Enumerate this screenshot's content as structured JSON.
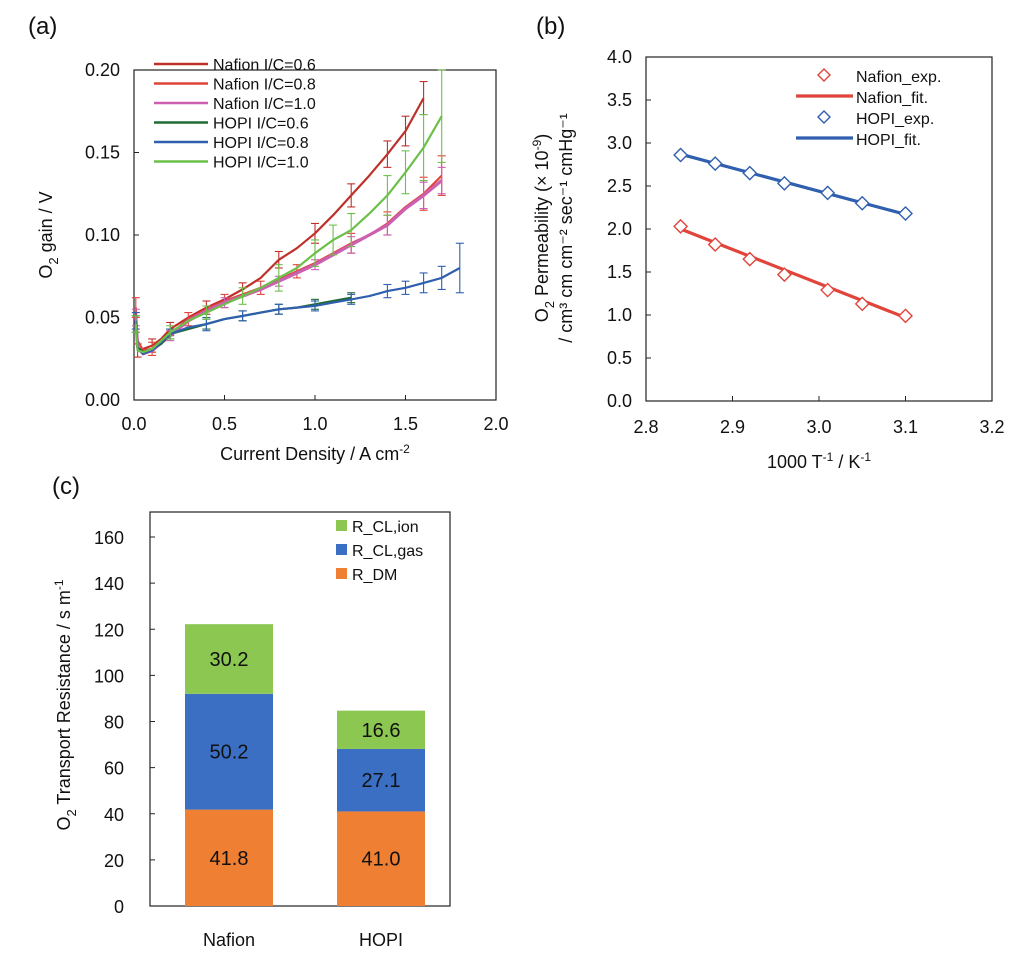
{
  "chart_data": [
    {
      "panel": "(a)",
      "type": "line",
      "xlabel": "Current Density / A cm",
      "xlabel_sup": "-2",
      "ylabel_pre": "O",
      "ylabel_sub": "2",
      "ylabel_post": " gain / V",
      "xlim": [
        0.0,
        2.0
      ],
      "ylim": [
        0.0,
        0.2
      ],
      "xticks": [
        "0.0",
        "0.5",
        "1.0",
        "1.5",
        "2.0"
      ],
      "yticks": [
        "0.00",
        "0.05",
        "0.10",
        "0.15",
        "0.20"
      ],
      "legend_position": "top-left",
      "series": [
        {
          "name": "Nafion I/C=0.6",
          "color": "#c0302a",
          "lw": 2.2,
          "points": [
            [
              0.02,
              0.03
            ],
            [
              0.05,
              0.031
            ],
            [
              0.1,
              0.033
            ],
            [
              0.15,
              0.037
            ],
            [
              0.2,
              0.043
            ],
            [
              0.3,
              0.05
            ],
            [
              0.4,
              0.056
            ],
            [
              0.5,
              0.061
            ],
            [
              0.6,
              0.067
            ],
            [
              0.7,
              0.074
            ],
            [
              0.8,
              0.085
            ],
            [
              0.9,
              0.092
            ],
            [
              1.0,
              0.101
            ],
            [
              1.1,
              0.112
            ],
            [
              1.2,
              0.124
            ],
            [
              1.3,
              0.136
            ],
            [
              1.4,
              0.149
            ],
            [
              1.5,
              0.163
            ],
            [
              1.6,
              0.183
            ]
          ],
          "errors": [
            [
              0.02,
              0.004
            ],
            [
              0.1,
              0.004
            ],
            [
              0.2,
              0.004
            ],
            [
              0.4,
              0.004
            ],
            [
              0.6,
              0.004
            ],
            [
              0.8,
              0.005
            ],
            [
              1.0,
              0.006
            ],
            [
              1.2,
              0.007
            ],
            [
              1.4,
              0.008
            ],
            [
              1.5,
              0.009
            ],
            [
              1.6,
              0.01
            ]
          ]
        },
        {
          "name": "Nafion I/C=0.8",
          "color": "#e0443a",
          "lw": 2.2,
          "points": [
            [
              0.01,
              0.056
            ],
            [
              0.02,
              0.036
            ],
            [
              0.05,
              0.03
            ],
            [
              0.1,
              0.031
            ],
            [
              0.2,
              0.04
            ],
            [
              0.3,
              0.049
            ],
            [
              0.4,
              0.055
            ],
            [
              0.5,
              0.06
            ],
            [
              0.6,
              0.064
            ],
            [
              0.7,
              0.068
            ],
            [
              0.8,
              0.073
            ],
            [
              0.9,
              0.078
            ],
            [
              1.0,
              0.083
            ],
            [
              1.1,
              0.089
            ],
            [
              1.2,
              0.095
            ],
            [
              1.3,
              0.1
            ],
            [
              1.4,
              0.107
            ],
            [
              1.5,
              0.117
            ],
            [
              1.6,
              0.125
            ],
            [
              1.7,
              0.136
            ]
          ],
          "errors": [
            [
              0.01,
              0.006
            ],
            [
              0.1,
              0.004
            ],
            [
              0.3,
              0.004
            ],
            [
              0.5,
              0.004
            ],
            [
              0.7,
              0.004
            ],
            [
              0.9,
              0.004
            ],
            [
              1.2,
              0.006
            ],
            [
              1.4,
              0.007
            ],
            [
              1.6,
              0.01
            ],
            [
              1.7,
              0.012
            ]
          ]
        },
        {
          "name": "Nafion I/C=1.0",
          "color": "#cc5fb0",
          "lw": 3.2,
          "points": [
            [
              0.01,
              0.05
            ],
            [
              0.02,
              0.032
            ],
            [
              0.05,
              0.028
            ],
            [
              0.1,
              0.03
            ],
            [
              0.2,
              0.039
            ],
            [
              0.3,
              0.048
            ],
            [
              0.4,
              0.054
            ],
            [
              0.5,
              0.059
            ],
            [
              0.6,
              0.063
            ],
            [
              0.7,
              0.067
            ],
            [
              0.8,
              0.072
            ],
            [
              0.9,
              0.077
            ],
            [
              1.0,
              0.082
            ],
            [
              1.1,
              0.088
            ],
            [
              1.2,
              0.094
            ],
            [
              1.3,
              0.1
            ],
            [
              1.4,
              0.106
            ],
            [
              1.5,
              0.116
            ],
            [
              1.6,
              0.124
            ],
            [
              1.7,
              0.133
            ]
          ],
          "errors": [
            [
              0.01,
              0.005
            ],
            [
              0.2,
              0.003
            ],
            [
              0.5,
              0.003
            ],
            [
              0.8,
              0.003
            ],
            [
              1.0,
              0.003
            ],
            [
              1.2,
              0.005
            ],
            [
              1.4,
              0.006
            ],
            [
              1.6,
              0.008
            ],
            [
              1.7,
              0.008
            ]
          ]
        },
        {
          "name": "HOPI I/C=0.6",
          "color": "#1f6b34",
          "lw": 2.2,
          "points": [
            [
              0.01,
              0.046
            ],
            [
              0.02,
              0.032
            ],
            [
              0.05,
              0.029
            ],
            [
              0.1,
              0.031
            ],
            [
              0.15,
              0.034
            ],
            [
              0.2,
              0.04
            ],
            [
              0.3,
              0.043
            ],
            [
              0.4,
              0.046
            ],
            [
              0.5,
              0.049
            ],
            [
              0.6,
              0.051
            ],
            [
              0.7,
              0.053
            ],
            [
              0.8,
              0.055
            ],
            [
              0.9,
              0.056
            ],
            [
              1.0,
              0.058
            ],
            [
              1.1,
              0.06
            ],
            [
              1.2,
              0.062
            ]
          ],
          "errors": [
            [
              0.01,
              0.005
            ],
            [
              0.2,
              0.003
            ],
            [
              0.4,
              0.003
            ],
            [
              0.6,
              0.003
            ],
            [
              0.8,
              0.003
            ],
            [
              1.0,
              0.003
            ],
            [
              1.2,
              0.003
            ]
          ]
        },
        {
          "name": "HOPI I/C=0.8",
          "color": "#2f5fae",
          "lw": 2.2,
          "points": [
            [
              0.01,
              0.048
            ],
            [
              0.02,
              0.031
            ],
            [
              0.05,
              0.028
            ],
            [
              0.1,
              0.03
            ],
            [
              0.2,
              0.04
            ],
            [
              0.3,
              0.044
            ],
            [
              0.4,
              0.046
            ],
            [
              0.5,
              0.049
            ],
            [
              0.6,
              0.051
            ],
            [
              0.7,
              0.053
            ],
            [
              0.8,
              0.055
            ],
            [
              0.9,
              0.056
            ],
            [
              1.0,
              0.057
            ],
            [
              1.1,
              0.059
            ],
            [
              1.2,
              0.061
            ],
            [
              1.3,
              0.063
            ],
            [
              1.4,
              0.066
            ],
            [
              1.5,
              0.068
            ],
            [
              1.6,
              0.071
            ],
            [
              1.7,
              0.074
            ],
            [
              1.8,
              0.08
            ]
          ],
          "errors": [
            [
              0.01,
              0.005
            ],
            [
              0.2,
              0.003
            ],
            [
              0.4,
              0.004
            ],
            [
              0.6,
              0.003
            ],
            [
              0.8,
              0.003
            ],
            [
              1.0,
              0.003
            ],
            [
              1.2,
              0.003
            ],
            [
              1.4,
              0.004
            ],
            [
              1.5,
              0.004
            ],
            [
              1.6,
              0.006
            ],
            [
              1.7,
              0.007
            ],
            [
              1.8,
              0.015
            ]
          ]
        },
        {
          "name": "HOPI I/C=1.0",
          "color": "#6cc04a",
          "lw": 2.2,
          "points": [
            [
              0.01,
              0.046
            ],
            [
              0.02,
              0.03
            ],
            [
              0.05,
              0.029
            ],
            [
              0.1,
              0.031
            ],
            [
              0.2,
              0.041
            ],
            [
              0.3,
              0.048
            ],
            [
              0.4,
              0.053
            ],
            [
              0.5,
              0.058
            ],
            [
              0.6,
              0.063
            ],
            [
              0.7,
              0.068
            ],
            [
              0.8,
              0.074
            ],
            [
              0.9,
              0.08
            ],
            [
              1.0,
              0.089
            ],
            [
              1.1,
              0.097
            ],
            [
              1.2,
              0.103
            ],
            [
              1.3,
              0.113
            ],
            [
              1.4,
              0.124
            ],
            [
              1.5,
              0.138
            ],
            [
              1.6,
              0.153
            ],
            [
              1.7,
              0.172
            ]
          ],
          "errors": [
            [
              0.01,
              0.005
            ],
            [
              0.2,
              0.004
            ],
            [
              0.4,
              0.004
            ],
            [
              0.6,
              0.005
            ],
            [
              0.8,
              0.008
            ],
            [
              1.0,
              0.008
            ],
            [
              1.1,
              0.009
            ],
            [
              1.2,
              0.01
            ],
            [
              1.4,
              0.012
            ],
            [
              1.5,
              0.013
            ],
            [
              1.6,
              0.02
            ],
            [
              1.7,
              0.028
            ]
          ]
        }
      ]
    },
    {
      "panel": "(b)",
      "type": "scatter",
      "xlabel_pre": "1000 T",
      "xlabel_sup1": "-1",
      "xlabel_mid": " / K",
      "xlabel_sup2": "-1",
      "ylabel_line1_pre": "O",
      "ylabel_line1_sub": "2",
      "ylabel_line1_post": " Permeability (× 10",
      "ylabel_line1_sup": "-9",
      "ylabel_line1_end": ")",
      "ylabel_line2": "/ cm³ cm cm⁻² sec⁻¹ cmHg⁻¹",
      "xlim": [
        2.8,
        3.2
      ],
      "ylim": [
        0.0,
        4.0
      ],
      "xticks": [
        "2.8",
        "2.9",
        "3.0",
        "3.1",
        "3.2"
      ],
      "yticks": [
        "0.0",
        "0.5",
        "1.0",
        "1.5",
        "2.0",
        "2.5",
        "3.0",
        "3.5",
        "4.0"
      ],
      "legend_position": "top-right",
      "series": [
        {
          "name": "Nafion_exp.",
          "kind": "marker",
          "color": "#e0443a",
          "points": [
            [
              2.84,
              2.03
            ],
            [
              2.88,
              1.82
            ],
            [
              2.92,
              1.65
            ],
            [
              2.96,
              1.47
            ],
            [
              3.01,
              1.29
            ],
            [
              3.05,
              1.13
            ],
            [
              3.1,
              0.99
            ]
          ]
        },
        {
          "name": "Nafion_fit.",
          "kind": "line",
          "color": "#e0443a",
          "points": [
            [
              2.84,
              2.0
            ],
            [
              3.1,
              0.97
            ]
          ]
        },
        {
          "name": "HOPI_exp.",
          "kind": "marker",
          "color": "#2f5fae",
          "points": [
            [
              2.84,
              2.86
            ],
            [
              2.88,
              2.76
            ],
            [
              2.92,
              2.65
            ],
            [
              2.96,
              2.53
            ],
            [
              3.01,
              2.42
            ],
            [
              3.05,
              2.3
            ],
            [
              3.1,
              2.18
            ]
          ]
        },
        {
          "name": "HOPI_fit.",
          "kind": "line",
          "color": "#2f5fae",
          "points": [
            [
              2.84,
              2.87
            ],
            [
              3.1,
              2.17
            ]
          ]
        }
      ]
    },
    {
      "panel": "(c)",
      "type": "bar",
      "stacked": true,
      "ylabel_pre": "O",
      "ylabel_sub": "2",
      "ylabel_post": " Transport Resistance /  s m",
      "ylabel_sup": "-1",
      "ylim": [
        0,
        160
      ],
      "yticks": [
        "0",
        "20",
        "40",
        "60",
        "80",
        "100",
        "120",
        "140",
        "160"
      ],
      "categories": [
        "Nafion",
        "HOPI"
      ],
      "legend_position": "top-right",
      "series": [
        {
          "name": "R_DM",
          "color": "#ef7f32",
          "values": [
            41.8,
            41.0
          ],
          "labels": [
            "41.8",
            "41.0"
          ]
        },
        {
          "name": "R_CL,gas",
          "color": "#3a6fc4",
          "values": [
            50.2,
            27.1
          ],
          "labels": [
            "50.2",
            "27.1"
          ]
        },
        {
          "name": "R_CL,ion",
          "color": "#8cc751",
          "values": [
            30.2,
            16.6
          ],
          "labels": [
            "30.2",
            "16.6"
          ]
        }
      ],
      "legend_order": [
        2,
        1,
        0
      ]
    }
  ]
}
